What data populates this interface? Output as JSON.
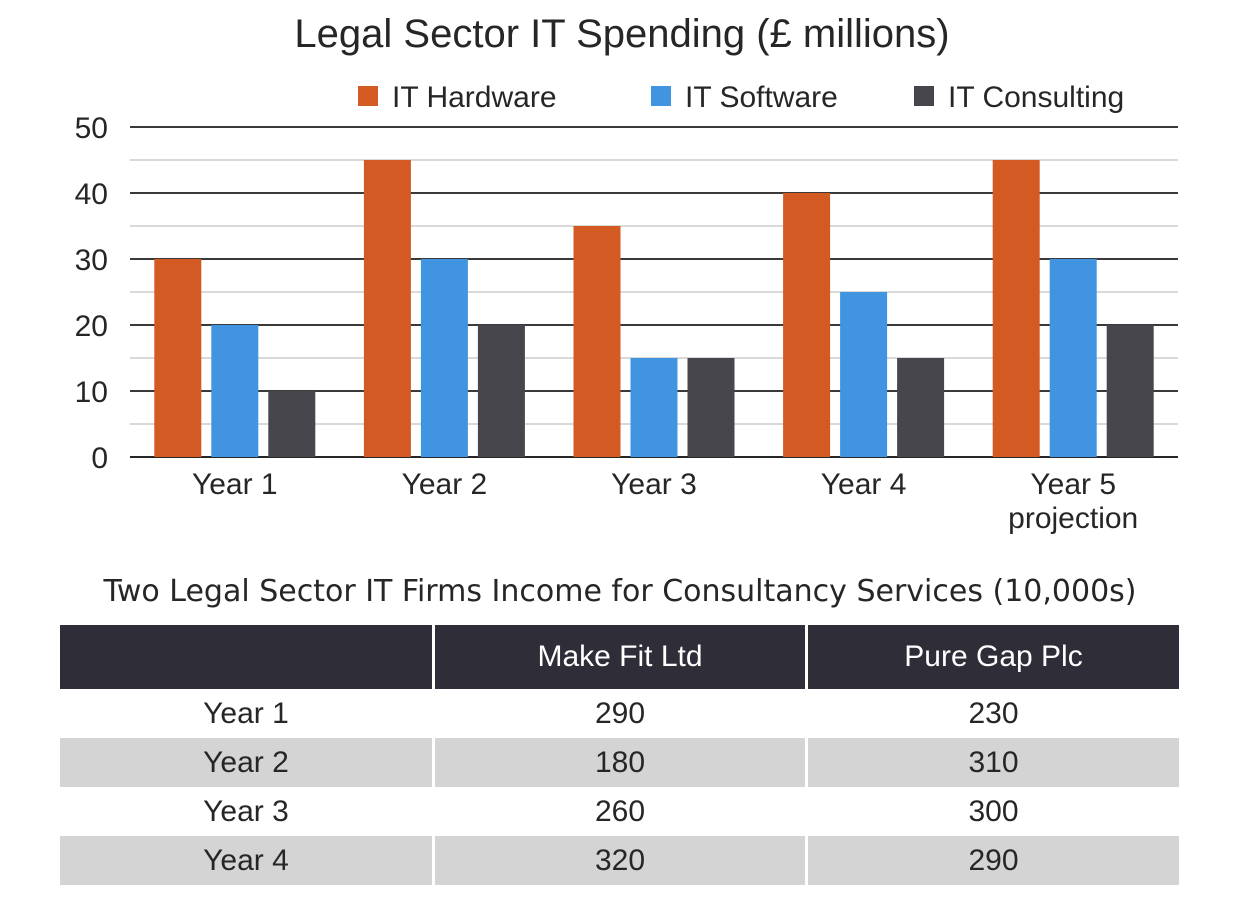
{
  "chart_data": {
    "type": "bar",
    "title": "Legal Sector IT Spending (£ millions)",
    "categories": [
      [
        "Year 1"
      ],
      [
        "Year 2"
      ],
      [
        "Year 3"
      ],
      [
        "Year 4"
      ],
      [
        "Year 5",
        "projection"
      ]
    ],
    "series": [
      {
        "name": "IT Hardware",
        "color": "#d35a23",
        "values": [
          30,
          45,
          35,
          40,
          45
        ]
      },
      {
        "name": "IT Software",
        "color": "#4194df",
        "values": [
          20,
          30,
          15,
          25,
          30
        ]
      },
      {
        "name": "IT Consulting",
        "color": "#47464c",
        "values": [
          10,
          20,
          15,
          15,
          20
        ]
      }
    ],
    "ylim": [
      0,
      50
    ],
    "yticks": [
      "0",
      "10",
      "20",
      "30",
      "40",
      "50"
    ],
    "grid": true,
    "legend_position": "top"
  },
  "table": {
    "caption": "Two Legal Sector IT Firms Income for Consultancy Services (10,000s)",
    "headers": [
      "",
      "Make Fit Ltd",
      "Pure Gap Plc"
    ],
    "rows": [
      [
        "Year 1",
        "290",
        "230"
      ],
      [
        "Year 2",
        "180",
        "310"
      ],
      [
        "Year 3",
        "260",
        "300"
      ],
      [
        "Year 4",
        "320",
        "290"
      ]
    ],
    "header_bg": "#2e2d38",
    "stripe_bg": "#d4d4d4"
  }
}
